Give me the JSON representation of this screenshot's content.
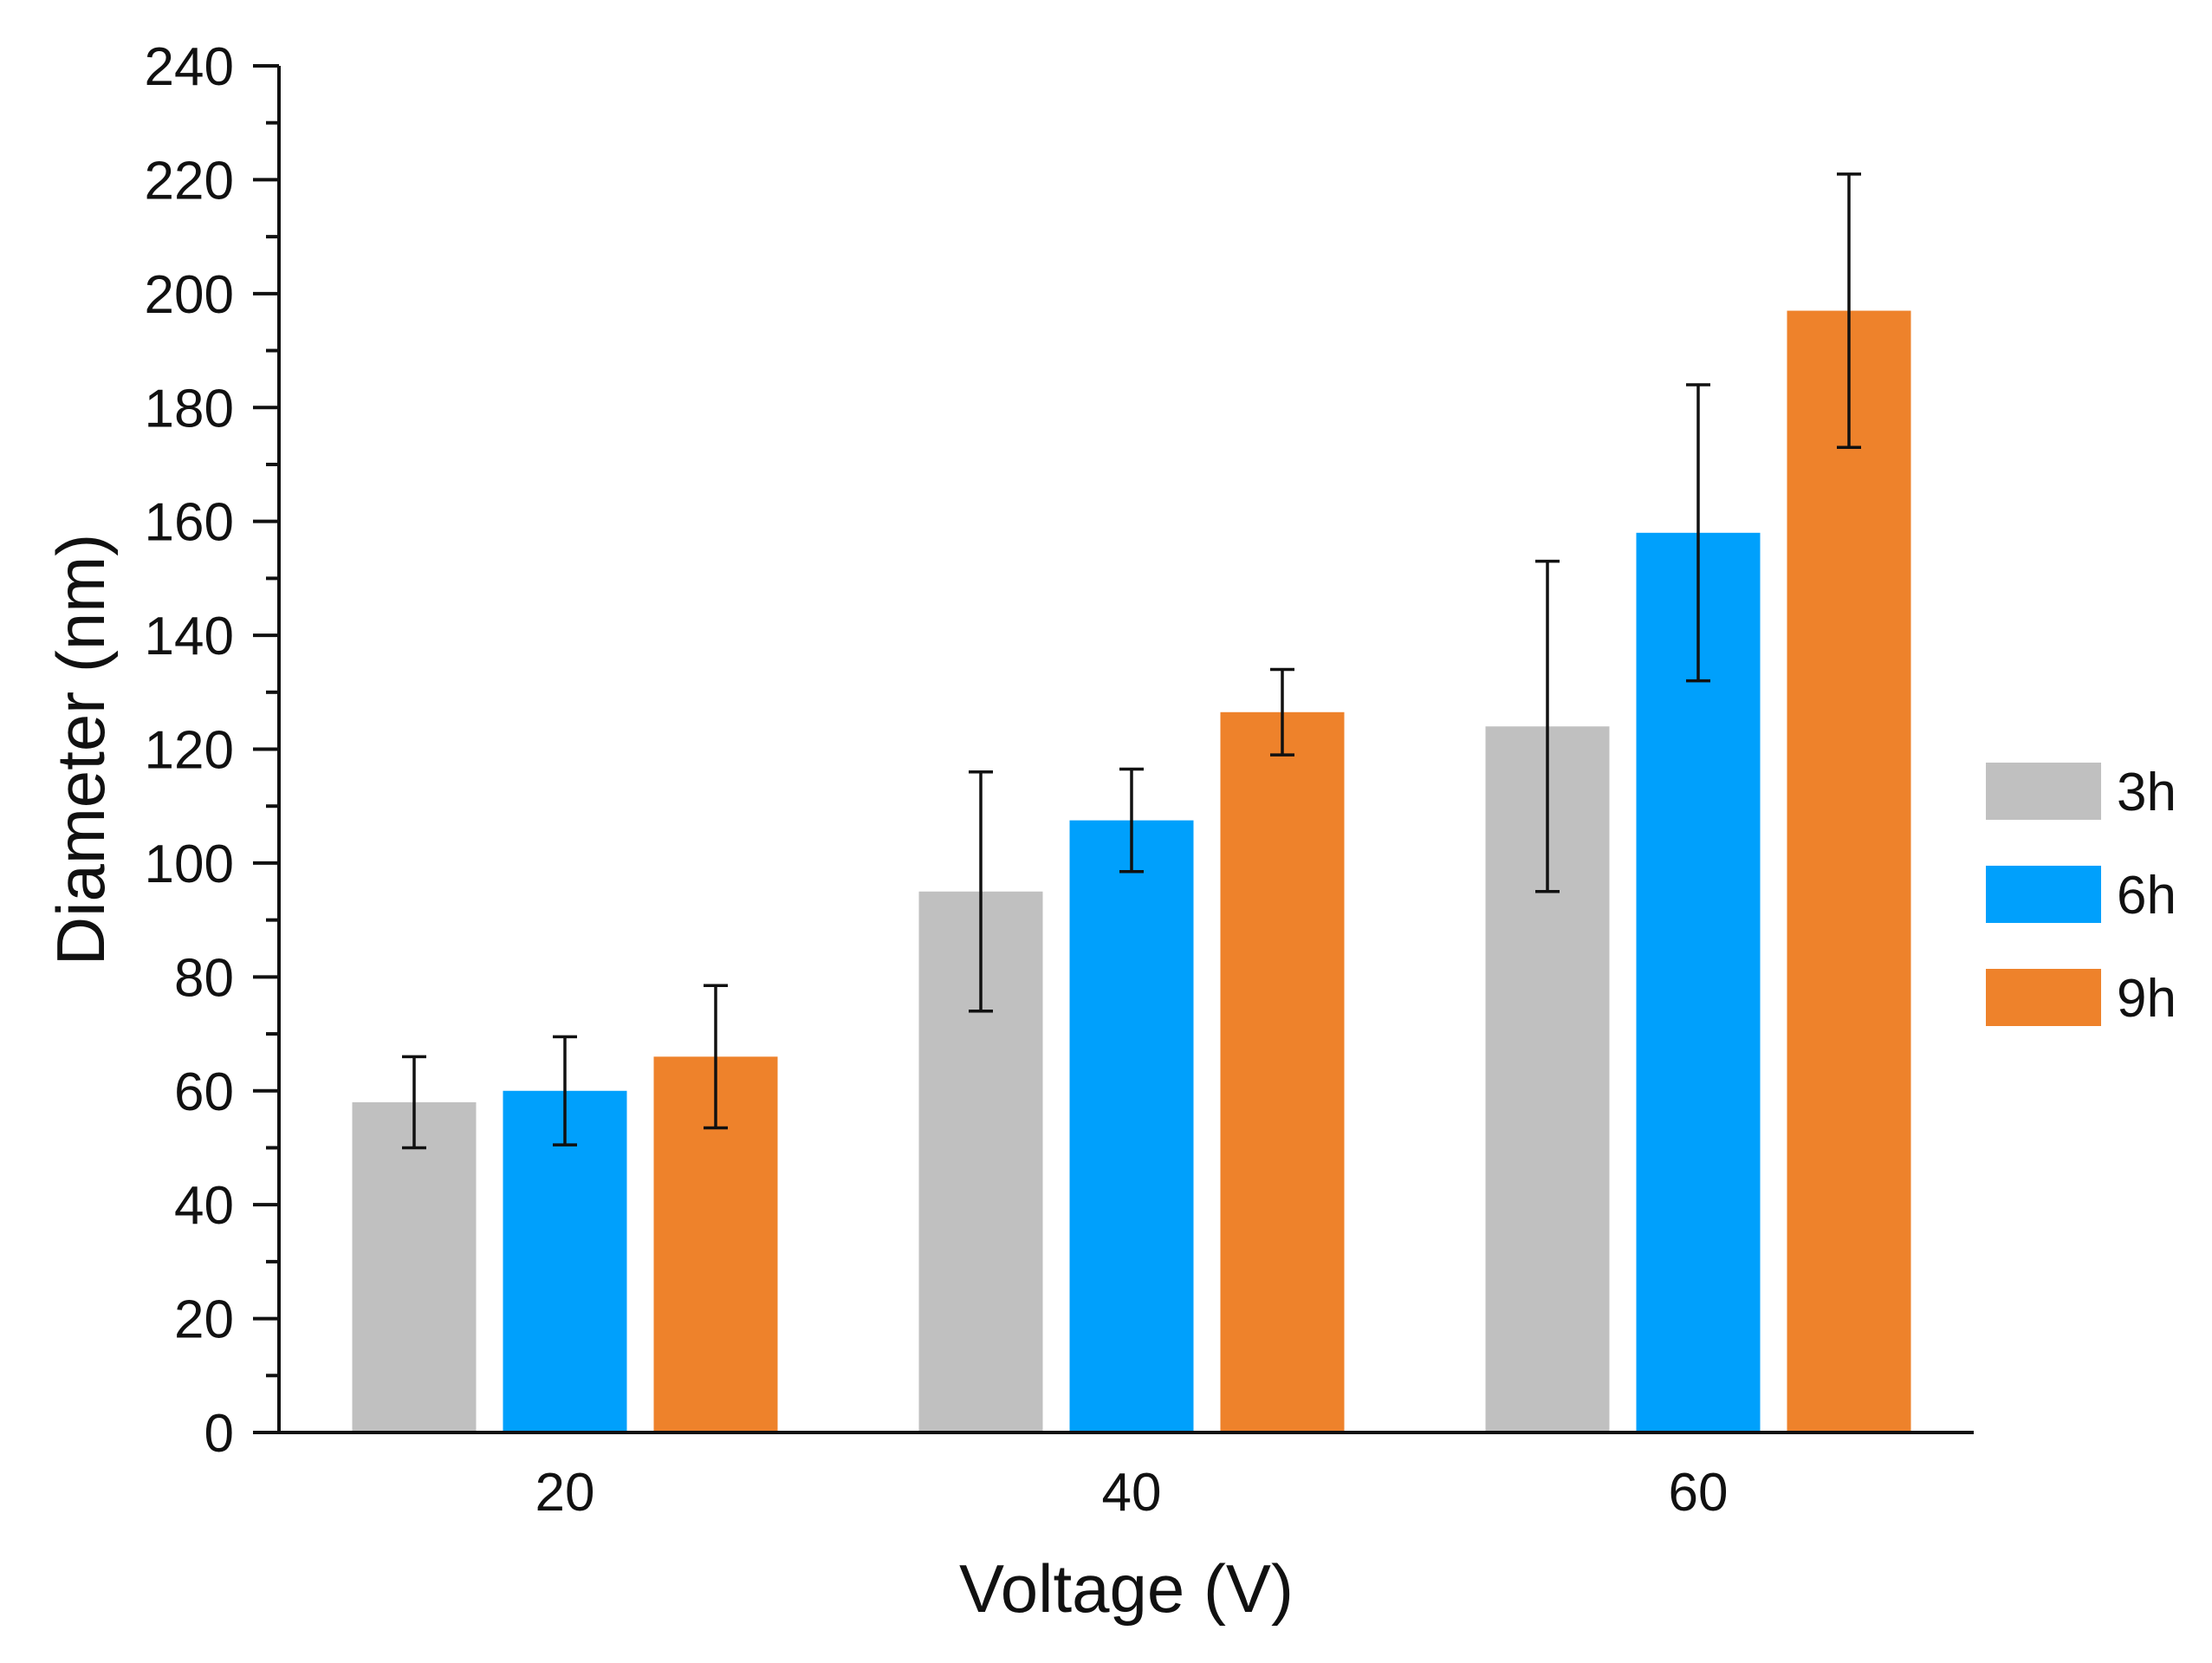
{
  "chart_data": {
    "type": "bar",
    "title": "",
    "xlabel": "Voltage (V)",
    "ylabel": "Diameter (nm)",
    "categories": [
      "20",
      "40",
      "60"
    ],
    "ylim": [
      0,
      240
    ],
    "yticks": [
      0,
      20,
      40,
      60,
      80,
      100,
      120,
      140,
      160,
      180,
      200,
      220,
      240
    ],
    "grid": false,
    "legend_position": "right",
    "series": [
      {
        "name": "3h",
        "color": "#c0c0c0",
        "values": [
          58,
          95,
          124
        ],
        "errors": [
          8,
          21,
          29
        ]
      },
      {
        "name": "6h",
        "color": "#00a0fc",
        "values": [
          60,
          107.5,
          158
        ],
        "errors": [
          9.5,
          9,
          26
        ]
      },
      {
        "name": "9h",
        "color": "#ee822b",
        "values": [
          66,
          126.5,
          197
        ],
        "errors": [
          12.5,
          7.5,
          24
        ]
      }
    ]
  }
}
